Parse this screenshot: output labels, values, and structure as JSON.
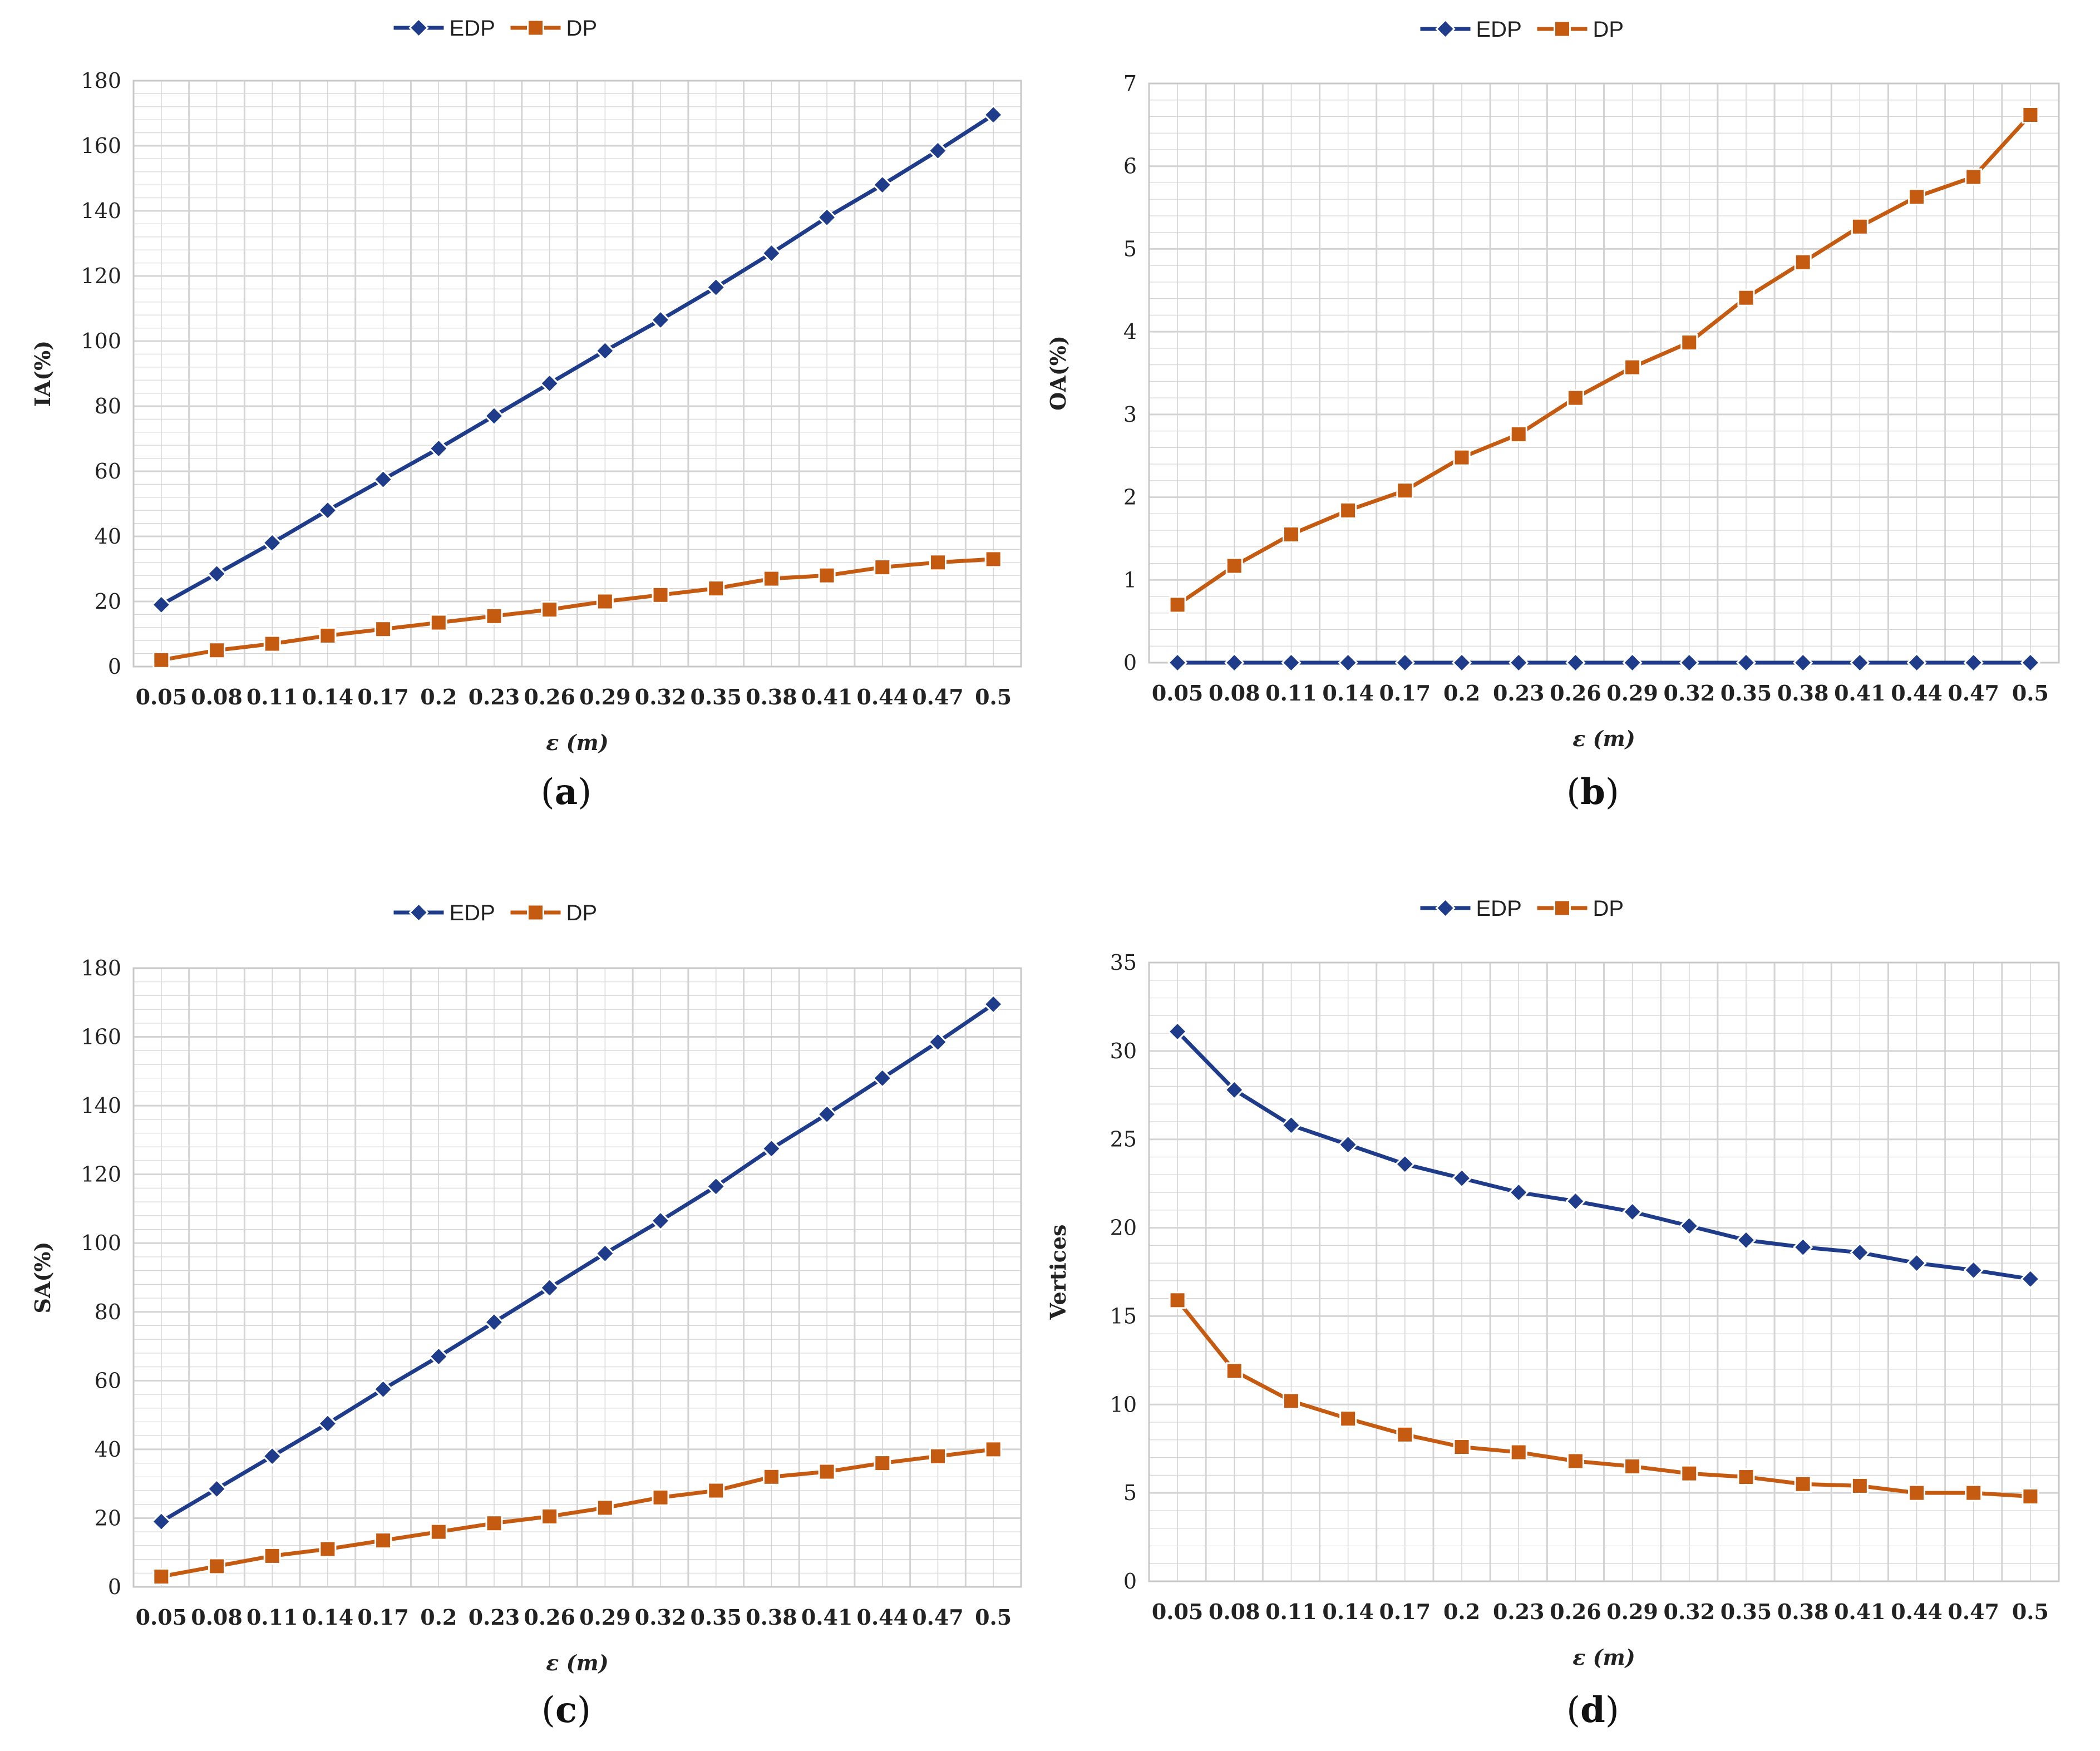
{
  "colors": {
    "EDP": "#1f3c8a",
    "DP": "#c55a11",
    "grid": "#d4d4d4",
    "frame": "#c8c8c8"
  },
  "chart_data": [
    {
      "panel": "a",
      "caption": "(a)",
      "type": "line",
      "title": "",
      "xlabel": "ε (m)",
      "ylabel": "IA(%)",
      "ylim": [
        0,
        180
      ],
      "ystep": 20,
      "grid": true,
      "legend": "top-center",
      "categories": [
        "0.05",
        "0.08",
        "0.11",
        "0.14",
        "0.17",
        "0.2",
        "0.23",
        "0.26",
        "0.29",
        "0.32",
        "0.35",
        "0.38",
        "0.41",
        "0.44",
        "0.47",
        "0.5"
      ],
      "series": [
        {
          "name": "EDP",
          "marker": "diamond",
          "values": [
            19,
            28.5,
            38,
            48,
            57.5,
            67,
            77,
            87,
            97,
            106.5,
            116.5,
            127,
            138,
            148,
            158.5,
            169.5
          ]
        },
        {
          "name": "DP",
          "marker": "square",
          "values": [
            2,
            5,
            7,
            9.5,
            11.5,
            13.5,
            15.5,
            17.5,
            20,
            22,
            24,
            27,
            28,
            30.5,
            32,
            33
          ]
        }
      ]
    },
    {
      "panel": "b",
      "caption": "(b)",
      "type": "line",
      "title": "",
      "xlabel": "ε (m)",
      "ylabel": "OA(%)",
      "ylim": [
        0,
        7
      ],
      "ystep": 1,
      "grid": true,
      "legend": "top-center",
      "categories": [
        "0.05",
        "0.08",
        "0.11",
        "0.14",
        "0.17",
        "0.2",
        "0.23",
        "0.26",
        "0.29",
        "0.32",
        "0.35",
        "0.38",
        "0.41",
        "0.44",
        "0.47",
        "0.5"
      ],
      "series": [
        {
          "name": "EDP",
          "marker": "diamond",
          "values": [
            0,
            0,
            0,
            0,
            0,
            0,
            0,
            0,
            0,
            0,
            0,
            0,
            0,
            0,
            0,
            0
          ]
        },
        {
          "name": "DP",
          "marker": "square",
          "values": [
            0.7,
            1.17,
            1.55,
            1.84,
            2.08,
            2.48,
            2.76,
            3.2,
            3.57,
            3.87,
            4.41,
            4.84,
            5.27,
            5.63,
            5.87,
            6.62
          ]
        }
      ]
    },
    {
      "panel": "c",
      "caption": "(c)",
      "type": "line",
      "title": "",
      "xlabel": "ε (m)",
      "ylabel": "SA(%)",
      "ylim": [
        0,
        180
      ],
      "ystep": 20,
      "grid": true,
      "legend": "top-center",
      "categories": [
        "0.05",
        "0.08",
        "0.11",
        "0.14",
        "0.17",
        "0.2",
        "0.23",
        "0.26",
        "0.29",
        "0.32",
        "0.35",
        "0.38",
        "0.41",
        "0.44",
        "0.47",
        "0.5"
      ],
      "series": [
        {
          "name": "EDP",
          "marker": "diamond",
          "values": [
            19,
            28.5,
            38,
            47.5,
            57.5,
            67,
            77,
            87,
            97,
            106.5,
            116.5,
            127.5,
            137.5,
            148,
            158.5,
            169.5
          ]
        },
        {
          "name": "DP",
          "marker": "square",
          "values": [
            3,
            6,
            9,
            11,
            13.5,
            16,
            18.5,
            20.5,
            23,
            26,
            28,
            32,
            33.5,
            36,
            38,
            40
          ]
        }
      ]
    },
    {
      "panel": "d",
      "caption": "(d)",
      "type": "line",
      "title": "",
      "xlabel": "ε (m)",
      "ylabel": "Vertices",
      "ylim": [
        0,
        35
      ],
      "ystep": 5,
      "grid": true,
      "legend": "top-center",
      "categories": [
        "0.05",
        "0.08",
        "0.11",
        "0.14",
        "0.17",
        "0.2",
        "0.23",
        "0.26",
        "0.29",
        "0.32",
        "0.35",
        "0.38",
        "0.41",
        "0.44",
        "0.47",
        "0.5"
      ],
      "series": [
        {
          "name": "EDP",
          "marker": "diamond",
          "values": [
            31.1,
            27.8,
            25.8,
            24.7,
            23.6,
            22.8,
            22,
            21.5,
            20.9,
            20.1,
            19.3,
            18.9,
            18.6,
            18,
            17.6,
            17.1
          ]
        },
        {
          "name": "DP",
          "marker": "square",
          "values": [
            15.9,
            11.9,
            10.2,
            9.2,
            8.3,
            7.6,
            7.3,
            6.8,
            6.5,
            6.1,
            5.9,
            5.5,
            5.4,
            5,
            5,
            4.8
          ]
        }
      ]
    }
  ]
}
